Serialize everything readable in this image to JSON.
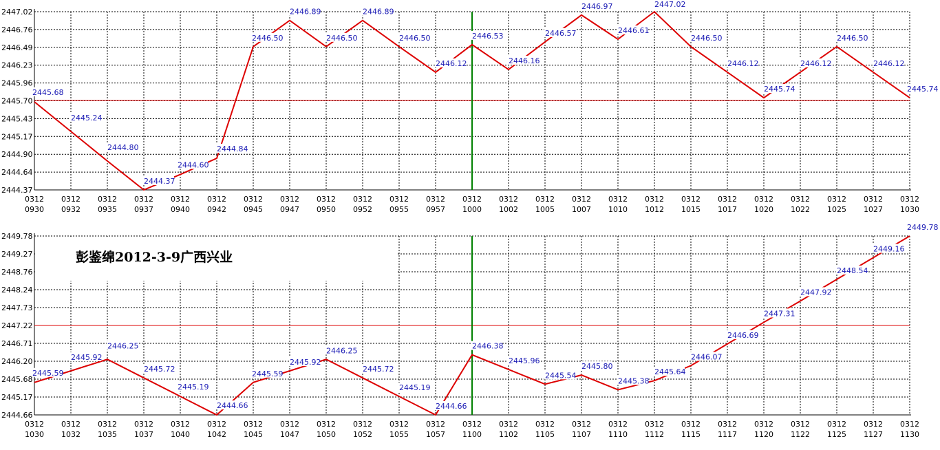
{
  "colors": {
    "background": "#ffffff",
    "line": "#dd0000",
    "reference_line": "#dd0000",
    "divider": "#008000",
    "grid": "#000000",
    "data_label": "#1a1ab4"
  },
  "chart_data": [
    {
      "type": "line",
      "grid": true,
      "ylim": [
        2444.37,
        2447.02
      ],
      "y_ticks": [
        "2447.02",
        "2446.76",
        "2446.49",
        "2446.23",
        "2445.96",
        "2445.70",
        "2445.43",
        "2445.17",
        "2444.90",
        "2444.64",
        "2444.37"
      ],
      "categories": [
        [
          "0312",
          "0930"
        ],
        [
          "0312",
          "0932"
        ],
        [
          "0312",
          "0935"
        ],
        [
          "0312",
          "0937"
        ],
        [
          "0312",
          "0940"
        ],
        [
          "0312",
          "0942"
        ],
        [
          "0312",
          "0945"
        ],
        [
          "0312",
          "0947"
        ],
        [
          "0312",
          "0950"
        ],
        [
          "0312",
          "0952"
        ],
        [
          "0312",
          "0955"
        ],
        [
          "0312",
          "0957"
        ],
        [
          "0312",
          "1000"
        ],
        [
          "0312",
          "1002"
        ],
        [
          "0312",
          "1005"
        ],
        [
          "0312",
          "1007"
        ],
        [
          "0312",
          "1010"
        ],
        [
          "0312",
          "1012"
        ],
        [
          "0312",
          "1015"
        ],
        [
          "0312",
          "1017"
        ],
        [
          "0312",
          "1020"
        ],
        [
          "0312",
          "1022"
        ],
        [
          "0312",
          "1025"
        ],
        [
          "0312",
          "1027"
        ],
        [
          "0312",
          "1030"
        ]
      ],
      "values": [
        2445.68,
        2445.24,
        2444.8,
        2444.37,
        2444.6,
        2444.84,
        2446.5,
        2446.89,
        2446.5,
        2446.89,
        2446.5,
        2446.12,
        2446.53,
        2446.16,
        2446.57,
        2446.97,
        2446.61,
        2447.02,
        2446.5,
        2446.12,
        2445.74,
        2446.12,
        2446.5,
        2446.12,
        2445.74
      ],
      "labels": [
        "2445.68",
        "2445.24",
        "2444.80",
        "2444.37",
        "2444.60",
        "2444.84",
        "2446.50",
        "2446.89",
        "2446.50",
        "2446.89",
        "2446.50",
        "2446.12",
        "2446.53",
        "2446.16",
        "2446.57",
        "2446.97",
        "2446.61",
        "2447.02",
        "2446.50",
        "2446.12",
        "2445.74",
        "2446.12",
        "2446.50",
        "2446.12",
        "2445.74"
      ],
      "reference_value": 2445.7,
      "divider_category_index": 12
    },
    {
      "type": "line",
      "grid": true,
      "ylim": [
        2444.66,
        2449.78
      ],
      "y_ticks": [
        "2449.78",
        "2449.27",
        "2448.76",
        "2448.24",
        "2447.73",
        "2447.22",
        "2446.71",
        "2446.20",
        "2445.68",
        "2445.17",
        "2444.66"
      ],
      "categories": [
        [
          "0312",
          "1030"
        ],
        [
          "0312",
          "1032"
        ],
        [
          "0312",
          "1035"
        ],
        [
          "0312",
          "1037"
        ],
        [
          "0312",
          "1040"
        ],
        [
          "0312",
          "1042"
        ],
        [
          "0312",
          "1045"
        ],
        [
          "0312",
          "1047"
        ],
        [
          "0312",
          "1050"
        ],
        [
          "0312",
          "1052"
        ],
        [
          "0312",
          "1055"
        ],
        [
          "0312",
          "1057"
        ],
        [
          "0312",
          "1100"
        ],
        [
          "0312",
          "1102"
        ],
        [
          "0312",
          "1105"
        ],
        [
          "0312",
          "1107"
        ],
        [
          "0312",
          "1110"
        ],
        [
          "0312",
          "1112"
        ],
        [
          "0312",
          "1115"
        ],
        [
          "0312",
          "1117"
        ],
        [
          "0312",
          "1120"
        ],
        [
          "0312",
          "1122"
        ],
        [
          "0312",
          "1125"
        ],
        [
          "0312",
          "1127"
        ],
        [
          "0312",
          "1130"
        ]
      ],
      "values": [
        2445.59,
        2445.92,
        2446.25,
        2445.72,
        2445.19,
        2444.66,
        2445.59,
        2445.92,
        2446.25,
        2445.72,
        2445.19,
        2444.66,
        2446.38,
        2445.96,
        2445.54,
        2445.8,
        2445.38,
        2445.64,
        2446.07,
        2446.69,
        2447.31,
        2447.92,
        2448.54,
        2449.16,
        2449.78
      ],
      "labels": [
        "2445.59",
        "2445.92",
        "2446.25",
        "2445.72",
        "2445.19",
        "2444.66",
        "2445.59",
        "2445.92",
        "2446.25",
        "2445.72",
        "2445.19",
        "2444.66",
        "2446.38",
        "2445.96",
        "2445.54",
        "2445.80",
        "2445.38",
        "2445.64",
        "2446.07",
        "2446.69",
        "2447.31",
        "2447.92",
        "2448.54",
        "2449.16",
        "2449.78"
      ],
      "reference_value": 2447.22,
      "divider_category_index": 12,
      "annotation": "彭鉴绵2012-3-9广西兴业"
    }
  ]
}
